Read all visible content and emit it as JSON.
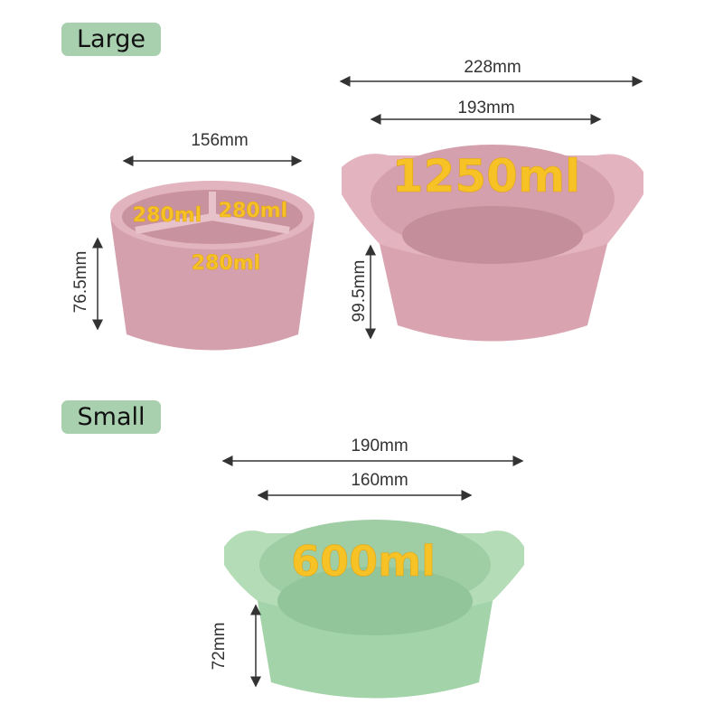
{
  "labels": {
    "large": "Large",
    "small": "Small"
  },
  "large": {
    "divided_bowl": {
      "width": "156mm",
      "height": "76.5mm",
      "compartments": [
        "280ml",
        "280ml",
        "280ml"
      ]
    },
    "colander": {
      "outer_width": "228mm",
      "inner_width": "193mm",
      "height": "99.5mm",
      "capacity": "1250ml"
    }
  },
  "small": {
    "outer_width": "190mm",
    "inner_width": "160mm",
    "height": "72mm",
    "capacity": "600ml"
  },
  "colors": {
    "pink": "#dcaab6",
    "green": "#a9d6ae",
    "tag": "#a8cfae",
    "capacity_text": "#f6c226"
  }
}
